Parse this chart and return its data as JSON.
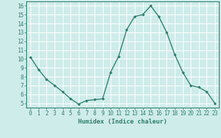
{
  "x": [
    0,
    1,
    2,
    3,
    4,
    5,
    6,
    7,
    8,
    9,
    10,
    11,
    12,
    13,
    14,
    15,
    16,
    17,
    18,
    19,
    20,
    21,
    22,
    23
  ],
  "y": [
    10.2,
    8.8,
    7.7,
    7.0,
    6.3,
    5.5,
    4.9,
    5.3,
    5.4,
    5.5,
    8.5,
    10.3,
    13.3,
    14.8,
    15.0,
    16.0,
    14.8,
    13.0,
    10.5,
    8.5,
    7.0,
    6.8,
    6.3,
    5.0
  ],
  "line_color": "#2e7d6e",
  "marker": "D",
  "markersize": 1.8,
  "linewidth": 1.0,
  "xlabel": "Humidex (Indice chaleur)",
  "ylim": [
    4.5,
    16.5
  ],
  "xlim": [
    -0.5,
    23.5
  ],
  "yticks": [
    5,
    6,
    7,
    8,
    9,
    10,
    11,
    12,
    13,
    14,
    15,
    16
  ],
  "xticks": [
    0,
    1,
    2,
    3,
    4,
    5,
    6,
    7,
    8,
    9,
    10,
    11,
    12,
    13,
    14,
    15,
    16,
    17,
    18,
    19,
    20,
    21,
    22,
    23
  ],
  "bg_color": "#ceecea",
  "grid_color": "#ffffff",
  "tick_color": "#2e7d6e",
  "label_color": "#2e7d6e",
  "xlabel_fontsize": 6.5,
  "tick_fontsize": 5.5
}
